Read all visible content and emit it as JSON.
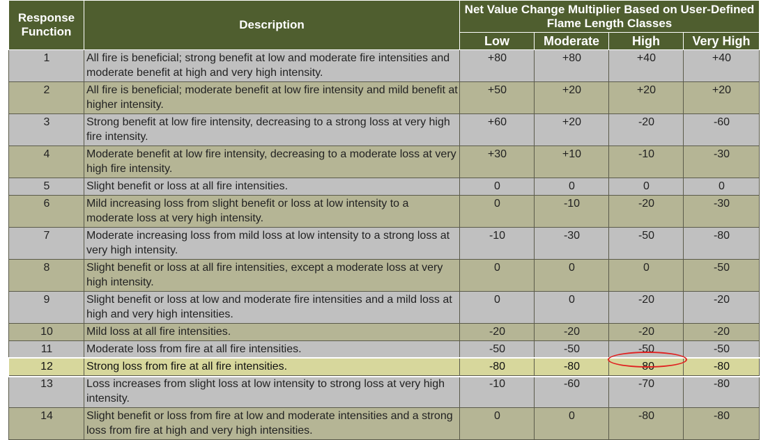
{
  "header": {
    "response_function": "Response Function",
    "description": "Description",
    "multiplier": "Net Value Change Multiplier Based on User-Defined Flame Length Classes",
    "classes": [
      "Low",
      "Moderate",
      "High",
      "Very High"
    ]
  },
  "rows": [
    {
      "id": "1",
      "desc": "All fire is beneficial; strong benefit at low and moderate fire intensities and moderate benefit at high and very high intensity.",
      "vals": [
        "+80",
        "+80",
        "+40",
        "+40"
      ]
    },
    {
      "id": "2",
      "desc": "All fire is beneficial; moderate benefit at low fire intensity and mild benefit at higher intensity.",
      "vals": [
        "+50",
        "+20",
        "+20",
        "+20"
      ]
    },
    {
      "id": "3",
      "desc": "Strong benefit at low fire intensity, decreasing to a strong loss at very high fire intensity.",
      "vals": [
        "+60",
        "+20",
        "-20",
        "-60"
      ]
    },
    {
      "id": "4",
      "desc": "Moderate benefit at low fire intensity, decreasing to a moderate loss at very high fire intensity.",
      "vals": [
        "+30",
        "+10",
        "-10",
        "-30"
      ]
    },
    {
      "id": "5",
      "desc": "Slight benefit or loss at all fire intensities.",
      "vals": [
        "0",
        "0",
        "0",
        "0"
      ]
    },
    {
      "id": "6",
      "desc": "Mild increasing loss from slight benefit or loss at low intensity to a moderate loss at very high intensity.",
      "vals": [
        "0",
        "-10",
        "-20",
        "-30"
      ]
    },
    {
      "id": "7",
      "desc": "Moderate increasing loss from mild loss at low intensity to a strong loss at very high intensity.",
      "vals": [
        "-10",
        "-30",
        "-50",
        "-80"
      ]
    },
    {
      "id": "8",
      "desc": "Slight benefit or loss at all fire intensities, except a moderate loss at very high intensity.",
      "vals": [
        "0",
        "0",
        "0",
        "-50"
      ]
    },
    {
      "id": "9",
      "desc": "Slight benefit or loss at low and moderate fire intensities and a mild loss at high and very high intensities.",
      "vals": [
        "0",
        "0",
        "-20",
        "-20"
      ]
    },
    {
      "id": "10",
      "desc": "Mild loss at all fire intensities.",
      "vals": [
        "-20",
        "-20",
        "-20",
        "-20"
      ]
    },
    {
      "id": "11",
      "desc": "Moderate loss from fire at all fire intensities.",
      "vals": [
        "-50",
        "-50",
        "-50",
        "-50"
      ]
    },
    {
      "id": "12",
      "desc": "Strong loss from fire at all fire intensities.",
      "vals": [
        "-80",
        "-80",
        "-80",
        "-80"
      ]
    },
    {
      "id": "13",
      "desc": "Loss increases from slight loss at low intensity to strong loss at very high intensity.",
      "vals": [
        "-10",
        "-60",
        "-70",
        "-80"
      ]
    },
    {
      "id": "14",
      "desc": "Slight benefit or loss from fire at low and moderate intensities and a strong loss from fire at high and very high intensities.",
      "vals": [
        "0",
        "0",
        "-80",
        "-80"
      ]
    }
  ],
  "highlight": {
    "row": "12",
    "circled_class": "High"
  },
  "colors": {
    "header_bg": "#4f5e2f",
    "row_grey": "#c0c0c0",
    "row_olive": "#b5b595",
    "row_highlight": "#d7d79c",
    "circle": "#e02020"
  }
}
